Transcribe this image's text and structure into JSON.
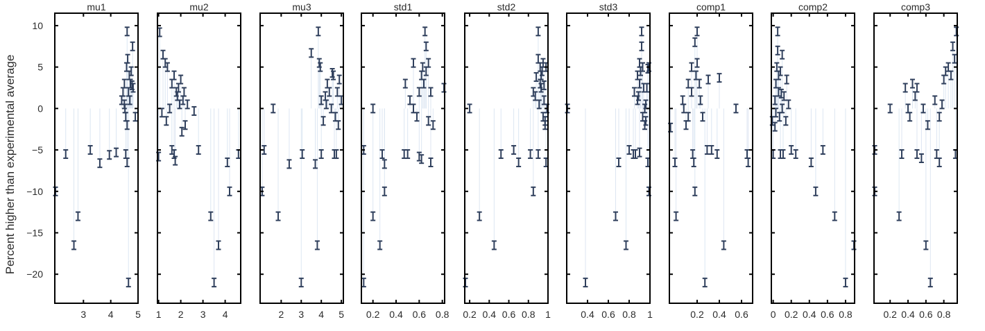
{
  "chart_data": {
    "type": "scatter",
    "ylabel": "Percent higher than experimental average",
    "ylim": [
      -23.5,
      11.5
    ],
    "yticks": [
      10,
      5,
      0,
      -5,
      -10,
      -15,
      -20
    ],
    "ytick_labels": [
      "10",
      "5",
      "0",
      "−5",
      "−10",
      "−15",
      "−20"
    ],
    "colors": {
      "marker": "#2f3f5c",
      "stem": "#dce6f2",
      "frame": "#000000"
    },
    "grid": false,
    "legend": "none",
    "panels": [
      {
        "title": "mu1",
        "xlim": [
          1.95,
          5.0
        ],
        "xticks": [
          3,
          4,
          5
        ],
        "xtick_labels": [
          "3",
          "4",
          "5"
        ],
        "points": [
          [
            1.95,
            -10
          ],
          [
            2.35,
            -5.5
          ],
          [
            2.65,
            -16.5
          ],
          [
            2.8,
            -13
          ],
          [
            3.25,
            -5
          ],
          [
            3.6,
            -6.6
          ],
          [
            3.95,
            -5.6
          ],
          [
            4.2,
            -5.3
          ],
          [
            4.65,
            -21
          ],
          [
            4.6,
            -6.5
          ],
          [
            4.55,
            -5.5
          ],
          [
            4.4,
            1
          ],
          [
            4.5,
            3
          ],
          [
            4.6,
            9.3
          ],
          [
            4.58,
            5
          ],
          [
            4.5,
            0.5
          ],
          [
            4.7,
            1
          ],
          [
            4.8,
            7.5
          ],
          [
            4.75,
            4.5
          ],
          [
            4.65,
            2
          ],
          [
            4.55,
            -1
          ],
          [
            4.72,
            3
          ],
          [
            4.62,
            6
          ],
          [
            4.82,
            2.5
          ],
          [
            4.9,
            -1
          ],
          [
            4.45,
            2
          ],
          [
            4.6,
            -2
          ],
          [
            4.68,
            4
          ],
          [
            4.78,
            2.8
          ],
          [
            4.52,
            0
          ]
        ]
      },
      {
        "title": "mu2",
        "xlim": [
          0.95,
          4.7
        ],
        "xticks": [
          1,
          2,
          3,
          4
        ],
        "xtick_labels": [
          "1",
          "2",
          "3",
          "4"
        ],
        "points": [
          [
            1.05,
            9.2
          ],
          [
            1.2,
            6.5
          ],
          [
            1.3,
            5.5
          ],
          [
            1.4,
            5
          ],
          [
            1.6,
            3
          ],
          [
            1.7,
            4
          ],
          [
            1.8,
            2
          ],
          [
            2.0,
            3.5
          ],
          [
            2.1,
            1
          ],
          [
            2.2,
            -2
          ],
          [
            1.15,
            -0.5
          ],
          [
            1.35,
            -1.5
          ],
          [
            1.5,
            0
          ],
          [
            1.7,
            -5.5
          ],
          [
            1.75,
            -6.3
          ],
          [
            1.0,
            -5.8
          ],
          [
            1.9,
            2.5
          ],
          [
            1.95,
            0.5
          ],
          [
            2.05,
            -2.8
          ],
          [
            2.15,
            2
          ],
          [
            2.3,
            0.5
          ],
          [
            2.6,
            -0.3
          ],
          [
            2.8,
            -5
          ],
          [
            3.35,
            -13
          ],
          [
            3.5,
            -21
          ],
          [
            3.7,
            -16.5
          ],
          [
            4.1,
            -6.5
          ],
          [
            4.2,
            -10
          ],
          [
            4.6,
            -5.5
          ],
          [
            1.6,
            -5
          ],
          [
            1.85,
            1.5
          ]
        ]
      },
      {
        "title": "mu3",
        "xlim": [
          0.95,
          5.1
        ],
        "xticks": [
          2,
          3,
          4,
          5
        ],
        "xtick_labels": [
          "2",
          "3",
          "4",
          "5"
        ],
        "points": [
          [
            1.05,
            -10
          ],
          [
            1.15,
            -5
          ],
          [
            1.6,
            0
          ],
          [
            1.85,
            -13
          ],
          [
            2.4,
            -6.7
          ],
          [
            3.0,
            -21
          ],
          [
            3.05,
            -5.5
          ],
          [
            3.5,
            6.7
          ],
          [
            3.7,
            -6.7
          ],
          [
            3.8,
            -16.5
          ],
          [
            3.85,
            9.3
          ],
          [
            3.9,
            5.5
          ],
          [
            3.95,
            5
          ],
          [
            4.0,
            -5.5
          ],
          [
            4.0,
            1
          ],
          [
            4.1,
            -1.5
          ],
          [
            4.2,
            1.5
          ],
          [
            4.3,
            3
          ],
          [
            4.4,
            2
          ],
          [
            4.5,
            0
          ],
          [
            4.6,
            4
          ],
          [
            4.7,
            -1
          ],
          [
            4.75,
            -5.5
          ],
          [
            4.8,
            2
          ],
          [
            4.9,
            3.5
          ],
          [
            5.0,
            1
          ],
          [
            4.85,
            -2
          ],
          [
            4.65,
            -5.5
          ],
          [
            4.55,
            4.3
          ],
          [
            4.25,
            0.5
          ]
        ]
      },
      {
        "title": "std1",
        "xlim": [
          0.1,
          0.82
        ],
        "xticks": [
          0.2,
          0.4,
          0.6,
          0.8
        ],
        "xtick_labels": [
          "0.2",
          "0.4",
          "0.6",
          "0.8"
        ],
        "points": [
          [
            0.12,
            -21
          ],
          [
            0.12,
            -5
          ],
          [
            0.2,
            -13
          ],
          [
            0.2,
            0
          ],
          [
            0.26,
            -16.5
          ],
          [
            0.28,
            -5.5
          ],
          [
            0.3,
            -10
          ],
          [
            0.3,
            -6.7
          ],
          [
            0.47,
            -5.5
          ],
          [
            0.5,
            -5.5
          ],
          [
            0.48,
            3
          ],
          [
            0.52,
            1
          ],
          [
            0.55,
            0
          ],
          [
            0.58,
            -1
          ],
          [
            0.6,
            2
          ],
          [
            0.62,
            4
          ],
          [
            0.64,
            3
          ],
          [
            0.65,
            9.3
          ],
          [
            0.66,
            7.5
          ],
          [
            0.63,
            5
          ],
          [
            0.68,
            5.5
          ],
          [
            0.7,
            2
          ],
          [
            0.68,
            -1.5
          ],
          [
            0.7,
            -6.5
          ],
          [
            0.72,
            -2
          ],
          [
            0.6,
            -5.8
          ],
          [
            0.62,
            -6.1
          ],
          [
            0.55,
            5.5
          ],
          [
            0.82,
            2.5
          ],
          [
            0.66,
            4.5
          ]
        ]
      },
      {
        "title": "std2",
        "xlim": [
          0.15,
          1.0
        ],
        "xticks": [
          0.2,
          0.4,
          0.6,
          0.8,
          1.0
        ],
        "xtick_labels": [
          "0.2",
          "0.4",
          "0.6",
          "0.8",
          "1"
        ],
        "points": [
          [
            0.15,
            -21
          ],
          [
            0.2,
            0
          ],
          [
            0.3,
            -13
          ],
          [
            0.45,
            -16.5
          ],
          [
            0.52,
            -5.5
          ],
          [
            0.65,
            -5
          ],
          [
            0.7,
            -6.5
          ],
          [
            0.82,
            -5.5
          ],
          [
            0.85,
            -10
          ],
          [
            0.85,
            2
          ],
          [
            0.87,
            1.5
          ],
          [
            0.9,
            9.3
          ],
          [
            0.9,
            6
          ],
          [
            0.92,
            5
          ],
          [
            0.92,
            3
          ],
          [
            0.93,
            2.5
          ],
          [
            0.93,
            4
          ],
          [
            0.95,
            5.5
          ],
          [
            0.96,
            1
          ],
          [
            0.97,
            -2
          ],
          [
            0.97,
            -1.5
          ],
          [
            0.98,
            -6.5
          ],
          [
            0.99,
            0
          ],
          [
            0.9,
            -5.5
          ],
          [
            0.94,
            4.5
          ],
          [
            0.88,
            3.8
          ],
          [
            0.95,
            -1
          ],
          [
            0.98,
            5
          ],
          [
            0.91,
            0.5
          ],
          [
            0.96,
            2.8
          ]
        ]
      },
      {
        "title": "std3",
        "xlim": [
          0.2,
          1.0
        ],
        "xticks": [
          0.4,
          0.6,
          0.8,
          1.0
        ],
        "xtick_labels": [
          "0.4",
          "0.6",
          "0.8",
          "1"
        ],
        "points": [
          [
            0.2,
            0
          ],
          [
            0.38,
            -21
          ],
          [
            0.67,
            -13
          ],
          [
            0.7,
            -6.5
          ],
          [
            0.77,
            -16.5
          ],
          [
            0.8,
            -5
          ],
          [
            0.84,
            -5.5
          ],
          [
            0.85,
            2
          ],
          [
            0.86,
            -5.5
          ],
          [
            0.88,
            1
          ],
          [
            0.9,
            3
          ],
          [
            0.9,
            5.5
          ],
          [
            0.92,
            9.3
          ],
          [
            0.92,
            7.5
          ],
          [
            0.93,
            5
          ],
          [
            0.94,
            2.5
          ],
          [
            0.95,
            0
          ],
          [
            0.95,
            -2
          ],
          [
            0.96,
            -1.5
          ],
          [
            0.97,
            2.5
          ],
          [
            0.98,
            4.8
          ],
          [
            0.98,
            -6.5
          ],
          [
            0.99,
            -10
          ],
          [
            0.99,
            5
          ],
          [
            0.88,
            4
          ],
          [
            0.91,
            4.5
          ],
          [
            0.89,
            1.5
          ],
          [
            0.96,
            0.5
          ],
          [
            0.9,
            -5.3
          ],
          [
            0.93,
            -1
          ]
        ]
      },
      {
        "title": "comp1",
        "xlim": [
          -0.05,
          0.7
        ],
        "xticks": [
          0.2,
          0.4,
          0.6
        ],
        "xtick_labels": [
          "0.2",
          "0.4",
          "0.6"
        ],
        "points": [
          [
            -0.04,
            -2.3
          ],
          [
            0.0,
            -6.5
          ],
          [
            0.01,
            -13
          ],
          [
            0.07,
            1
          ],
          [
            0.08,
            0
          ],
          [
            0.1,
            -2
          ],
          [
            0.12,
            3
          ],
          [
            0.15,
            5
          ],
          [
            0.15,
            2
          ],
          [
            0.17,
            -6.5
          ],
          [
            0.18,
            -10
          ],
          [
            0.18,
            8
          ],
          [
            0.2,
            9.3
          ],
          [
            0.2,
            5.5
          ],
          [
            0.22,
            3
          ],
          [
            0.23,
            1
          ],
          [
            0.25,
            -1
          ],
          [
            0.27,
            -21
          ],
          [
            0.29,
            -5
          ],
          [
            0.3,
            3.5
          ],
          [
            0.33,
            -5
          ],
          [
            0.38,
            -5.5
          ],
          [
            0.4,
            3.7
          ],
          [
            0.44,
            -16.5
          ],
          [
            0.55,
            0
          ],
          [
            0.65,
            -5.5
          ],
          [
            0.66,
            -6.5
          ],
          [
            0.12,
            -1
          ],
          [
            0.19,
            4
          ],
          [
            0.16,
            -5.5
          ]
        ]
      },
      {
        "title": "comp2",
        "xlim": [
          -0.02,
          0.9
        ],
        "xticks": [
          0,
          0.2,
          0.4,
          0.6,
          0.8
        ],
        "xtick_labels": [
          "0",
          "0.2",
          "0.4",
          "0.6",
          "0.8"
        ],
        "points": [
          [
            -0.01,
            -1.5
          ],
          [
            0.0,
            -5.5
          ],
          [
            0.02,
            1
          ],
          [
            0.03,
            3
          ],
          [
            0.04,
            5
          ],
          [
            0.05,
            9.3
          ],
          [
            0.05,
            7
          ],
          [
            0.06,
            2
          ],
          [
            0.07,
            -1
          ],
          [
            0.08,
            4.5
          ],
          [
            0.08,
            -5.5
          ],
          [
            0.1,
            6.5
          ],
          [
            0.1,
            0
          ],
          [
            0.12,
            1.5
          ],
          [
            0.14,
            -1.5
          ],
          [
            0.15,
            3.5
          ],
          [
            0.17,
            0.5
          ],
          [
            0.2,
            -5
          ],
          [
            0.25,
            -5.5
          ],
          [
            0.42,
            -6.5
          ],
          [
            0.47,
            -10
          ],
          [
            0.55,
            -5
          ],
          [
            0.68,
            -13
          ],
          [
            0.8,
            -21
          ],
          [
            0.9,
            -16.5
          ],
          [
            0.03,
            -0.5
          ],
          [
            0.06,
            4
          ],
          [
            0.11,
            -5.5
          ],
          [
            0.02,
            -2.2
          ],
          [
            0.09,
            1.8
          ]
        ]
      },
      {
        "title": "comp3",
        "xlim": [
          0.02,
          0.95
        ],
        "xticks": [
          0.2,
          0.4,
          0.6,
          0.8
        ],
        "xtick_labels": [
          "0.2",
          "0.4",
          "0.6",
          "0.8"
        ],
        "points": [
          [
            0.02,
            -5
          ],
          [
            0.02,
            -10
          ],
          [
            0.2,
            0
          ],
          [
            0.3,
            -13
          ],
          [
            0.33,
            -5.5
          ],
          [
            0.37,
            2.5
          ],
          [
            0.4,
            0
          ],
          [
            0.42,
            -1
          ],
          [
            0.45,
            3
          ],
          [
            0.48,
            1.5
          ],
          [
            0.5,
            -5.5
          ],
          [
            0.5,
            2.5
          ],
          [
            0.55,
            -6
          ],
          [
            0.57,
            0
          ],
          [
            0.6,
            -16.5
          ],
          [
            0.62,
            -2
          ],
          [
            0.65,
            -21
          ],
          [
            0.7,
            1
          ],
          [
            0.72,
            -5.5
          ],
          [
            0.75,
            -6.5
          ],
          [
            0.75,
            -1
          ],
          [
            0.78,
            0.5
          ],
          [
            0.8,
            3.5
          ],
          [
            0.82,
            4.5
          ],
          [
            0.85,
            5
          ],
          [
            0.88,
            4
          ],
          [
            0.9,
            7.5
          ],
          [
            0.92,
            6
          ],
          [
            0.94,
            9.3
          ],
          [
            0.93,
            -5.5
          ]
        ]
      }
    ]
  }
}
